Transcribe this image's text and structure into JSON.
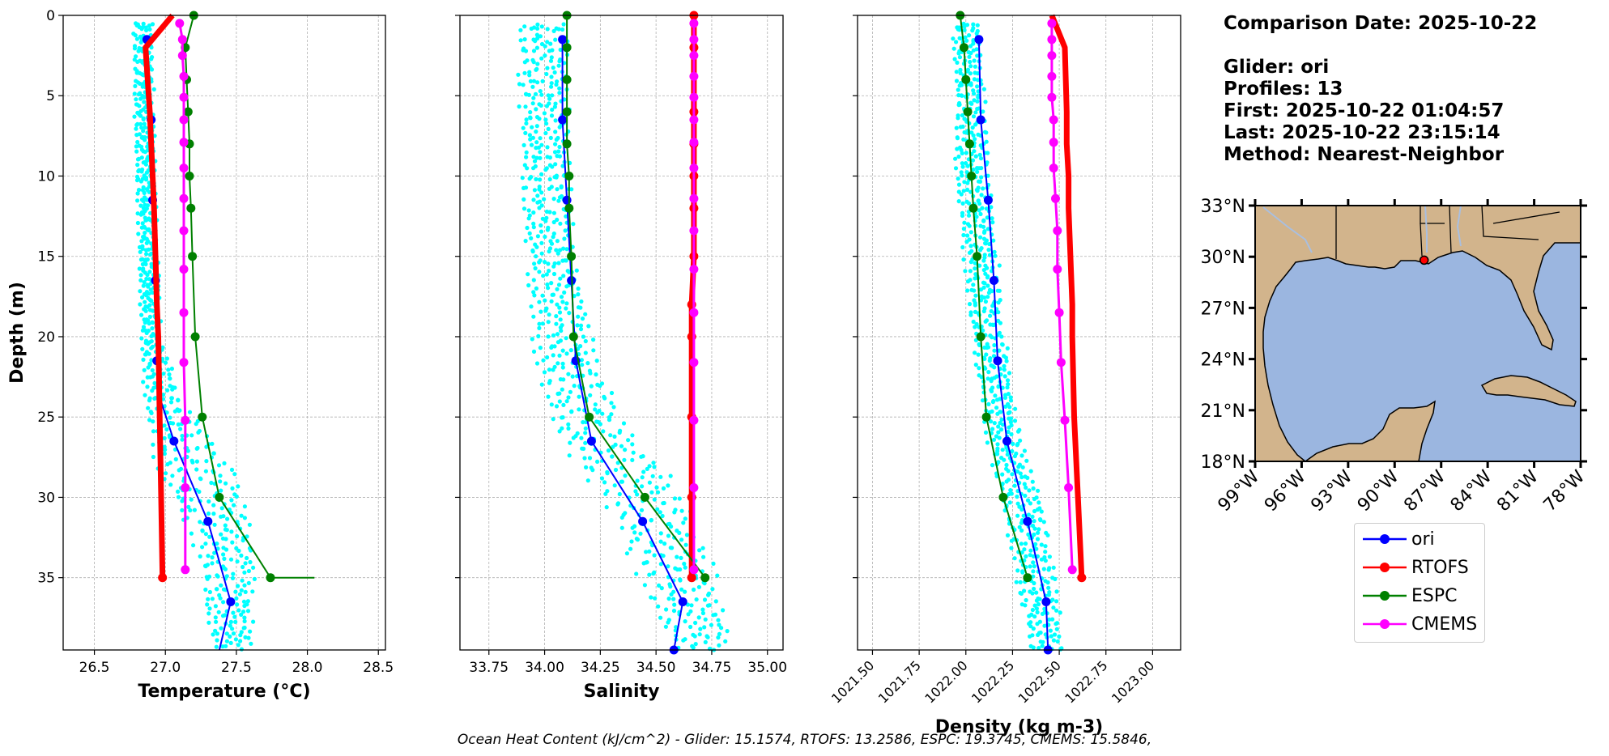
{
  "chart_data": [
    {
      "type": "line",
      "name": "temperature-profile",
      "xlabel": "Temperature (°C)",
      "ylabel": "Depth (m)",
      "xlim": [
        26.28,
        28.55
      ],
      "ylim": [
        39.5,
        0
      ],
      "xticks": [
        26.5,
        27.0,
        27.5,
        28.0,
        28.5
      ],
      "xtick_labels": [
        "26.5",
        "27.0",
        "27.5",
        "28.0",
        "28.5"
      ],
      "yticks": [
        0,
        5,
        10,
        15,
        20,
        25,
        30,
        35
      ],
      "ytick_labels": [
        "0",
        "5",
        "10",
        "15",
        "20",
        "25",
        "30",
        "35"
      ],
      "grid": true,
      "scatter_name": "glider-profiles",
      "series": [
        {
          "name": "ori",
          "color": "#0000ff",
          "width": 2,
          "marker": "circle",
          "x": [
            26.87,
            26.9,
            26.91,
            26.93,
            26.94,
            26.95,
            27.06,
            27.3,
            27.46,
            27.38
          ],
          "y": [
            1.5,
            6.5,
            11.5,
            16.5,
            21.5,
            23.5,
            26.5,
            31.5,
            36.5,
            39.5
          ],
          "marker_idx": [
            0,
            1,
            2,
            3,
            4,
            6,
            7,
            8
          ]
        },
        {
          "name": "RTOFS",
          "color": "#ff0000",
          "width": 7,
          "marker": "circle",
          "x": [
            27.05,
            26.86,
            26.89,
            26.9,
            26.91,
            26.92,
            26.93,
            26.94,
            26.95,
            26.96,
            26.97,
            26.98
          ],
          "y": [
            0,
            2,
            6,
            8,
            10,
            12,
            15,
            18,
            20,
            25,
            30,
            35
          ],
          "marker_idx": [
            11
          ]
        },
        {
          "name": "ESPC",
          "color": "#008000",
          "width": 2,
          "marker": "circle",
          "x": [
            27.2,
            27.14,
            27.15,
            27.16,
            27.17,
            27.17,
            27.18,
            27.19,
            27.21,
            27.26,
            27.38,
            27.74,
            28.05
          ],
          "y": [
            0,
            2,
            4,
            6,
            8,
            10,
            12,
            15,
            20,
            25,
            30,
            35,
            35
          ],
          "marker_idx": [
            0,
            1,
            2,
            3,
            4,
            5,
            6,
            7,
            8,
            9,
            10,
            11
          ]
        },
        {
          "name": "CMEMS",
          "color": "#ff00ff",
          "width": 3,
          "marker": "circle",
          "x": [
            27.1,
            27.12,
            27.12,
            27.13,
            27.13,
            27.13,
            27.13,
            27.13,
            27.13,
            27.13,
            27.13,
            27.13,
            27.13,
            27.14,
            27.14,
            27.14
          ],
          "y": [
            0.5,
            1.5,
            2.5,
            3.8,
            5.1,
            6.5,
            7.9,
            9.5,
            11.4,
            13.4,
            15.8,
            18.5,
            21.6,
            25.2,
            29.4,
            34.5
          ]
        }
      ]
    },
    {
      "type": "line",
      "name": "salinity-profile",
      "xlabel": "Salinity",
      "ylim": [
        39.5,
        0
      ],
      "xlim": [
        33.62,
        35.07
      ],
      "xticks": [
        33.75,
        34.0,
        34.25,
        34.5,
        34.75,
        35.0
      ],
      "xtick_labels": [
        "33.75",
        "34.00",
        "34.25",
        "34.50",
        "34.75",
        "35.00"
      ],
      "yticks": [
        0,
        5,
        10,
        15,
        20,
        25,
        30,
        35
      ],
      "grid": true,
      "scatter_name": "glider-profiles",
      "series": [
        {
          "name": "ori",
          "color": "#0000ff",
          "width": 2,
          "marker": "circle",
          "x": [
            34.08,
            34.08,
            34.1,
            34.12,
            34.14,
            34.21,
            34.44,
            34.62,
            34.58
          ],
          "y": [
            1.5,
            6.5,
            11.5,
            16.5,
            21.5,
            26.5,
            31.5,
            36.5,
            39.5
          ]
        },
        {
          "name": "RTOFS",
          "color": "#ff0000",
          "width": 7,
          "marker": "circle",
          "x": [
            34.67,
            34.67,
            34.67,
            34.67,
            34.67,
            34.67,
            34.67,
            34.66,
            34.66,
            34.66,
            34.66,
            34.66
          ],
          "y": [
            0,
            2,
            6,
            8,
            10,
            12,
            15,
            18,
            20,
            25,
            30,
            35
          ]
        },
        {
          "name": "ESPC",
          "color": "#008000",
          "width": 2,
          "marker": "circle",
          "x": [
            34.1,
            34.1,
            34.1,
            34.1,
            34.1,
            34.11,
            34.11,
            34.12,
            34.13,
            34.2,
            34.45,
            34.72
          ],
          "y": [
            0,
            2,
            4,
            6,
            8,
            10,
            12,
            15,
            20,
            25,
            30,
            35
          ]
        },
        {
          "name": "CMEMS",
          "color": "#ff00ff",
          "width": 3,
          "marker": "circle",
          "x": [
            34.67,
            34.67,
            34.67,
            34.67,
            34.67,
            34.67,
            34.67,
            34.67,
            34.67,
            34.67,
            34.67,
            34.67,
            34.67,
            34.67,
            34.67,
            34.67
          ],
          "y": [
            0.5,
            1.5,
            2.5,
            3.8,
            5.1,
            6.5,
            7.9,
            9.5,
            11.4,
            13.4,
            15.8,
            18.5,
            21.6,
            25.2,
            29.4,
            34.5
          ]
        }
      ]
    },
    {
      "type": "line",
      "name": "density-profile",
      "xlabel": "Density (kg m-3)",
      "ylim": [
        39.5,
        0
      ],
      "xlim": [
        1021.42,
        1023.15
      ],
      "xticks": [
        1021.5,
        1021.75,
        1022.0,
        1022.25,
        1022.5,
        1022.75,
        1023.0
      ],
      "xtick_labels": [
        "1021.50",
        "1021.75",
        "1022.00",
        "1022.25",
        "1022.50",
        "1022.75",
        "1023.00"
      ],
      "yticks": [
        0,
        5,
        10,
        15,
        20,
        25,
        30,
        35
      ],
      "grid": true,
      "scatter_name": "glider-profiles",
      "series": [
        {
          "name": "ori",
          "color": "#0000ff",
          "width": 2,
          "marker": "circle",
          "x": [
            1022.07,
            1022.08,
            1022.12,
            1022.15,
            1022.17,
            1022.22,
            1022.33,
            1022.43,
            1022.44
          ],
          "y": [
            1.5,
            6.5,
            11.5,
            16.5,
            21.5,
            26.5,
            31.5,
            36.5,
            39.5
          ]
        },
        {
          "name": "RTOFS",
          "color": "#ff0000",
          "width": 7,
          "marker": "circle",
          "x": [
            1022.46,
            1022.53,
            1022.54,
            1022.54,
            1022.55,
            1022.55,
            1022.56,
            1022.57,
            1022.57,
            1022.58,
            1022.6,
            1022.62
          ],
          "y": [
            0,
            2,
            6,
            8,
            10,
            12,
            15,
            18,
            20,
            25,
            30,
            35
          ],
          "marker_idx": [
            11
          ]
        },
        {
          "name": "ESPC",
          "color": "#008000",
          "width": 2,
          "marker": "circle",
          "x": [
            1021.97,
            1021.99,
            1022.0,
            1022.01,
            1022.02,
            1022.03,
            1022.04,
            1022.06,
            1022.08,
            1022.11,
            1022.2,
            1022.33
          ],
          "y": [
            0,
            2,
            4,
            6,
            8,
            10,
            12,
            15,
            20,
            25,
            30,
            35
          ]
        },
        {
          "name": "CMEMS",
          "color": "#ff00ff",
          "width": 3,
          "marker": "circle",
          "x": [
            1022.46,
            1022.46,
            1022.46,
            1022.46,
            1022.46,
            1022.47,
            1022.47,
            1022.47,
            1022.48,
            1022.49,
            1022.49,
            1022.5,
            1022.51,
            1022.53,
            1022.55,
            1022.57
          ],
          "y": [
            0.5,
            1.5,
            2.5,
            3.8,
            5.1,
            6.5,
            7.9,
            9.5,
            11.4,
            13.4,
            15.8,
            18.5,
            21.6,
            25.2,
            29.4,
            34.5
          ]
        }
      ]
    },
    {
      "type": "map",
      "name": "glider-location-map",
      "lat_ticks": [
        "33°N",
        "30°N",
        "27°N",
        "24°N",
        "21°N",
        "18°N"
      ],
      "lon_ticks": [
        "99°W",
        "96°W",
        "93°W",
        "90°W",
        "87°W",
        "84°W",
        "81°W",
        "78°W"
      ],
      "lat_range": [
        18,
        33
      ],
      "lon_range": [
        -99,
        -78
      ],
      "glider_position": {
        "lat": 29.8,
        "lon": -88.1,
        "color": "#ff0000"
      },
      "land_color": "#d2b48c",
      "ocean_color": "#9bb6e0"
    }
  ],
  "info": {
    "lines": [
      "Comparison Date: 2025-10-22",
      "",
      "Glider: ori",
      "Profiles: 13",
      "First: 2025-10-22 01:04:57",
      "Last: 2025-10-22 23:15:14",
      "Method: Nearest-Neighbor"
    ]
  },
  "legend": [
    {
      "label": "ori",
      "color": "#0000ff"
    },
    {
      "label": "RTOFS",
      "color": "#ff0000"
    },
    {
      "label": "ESPC",
      "color": "#008000"
    },
    {
      "label": "CMEMS",
      "color": "#ff00ff"
    }
  ],
  "glider_scatter_color": "#00ffff",
  "footer": "Ocean Heat Content (kJ/cm^2) - Glider: 15.1574,  RTOFS: 13.2586,  ESPC: 19.3745,  CMEMS: 15.5846,"
}
